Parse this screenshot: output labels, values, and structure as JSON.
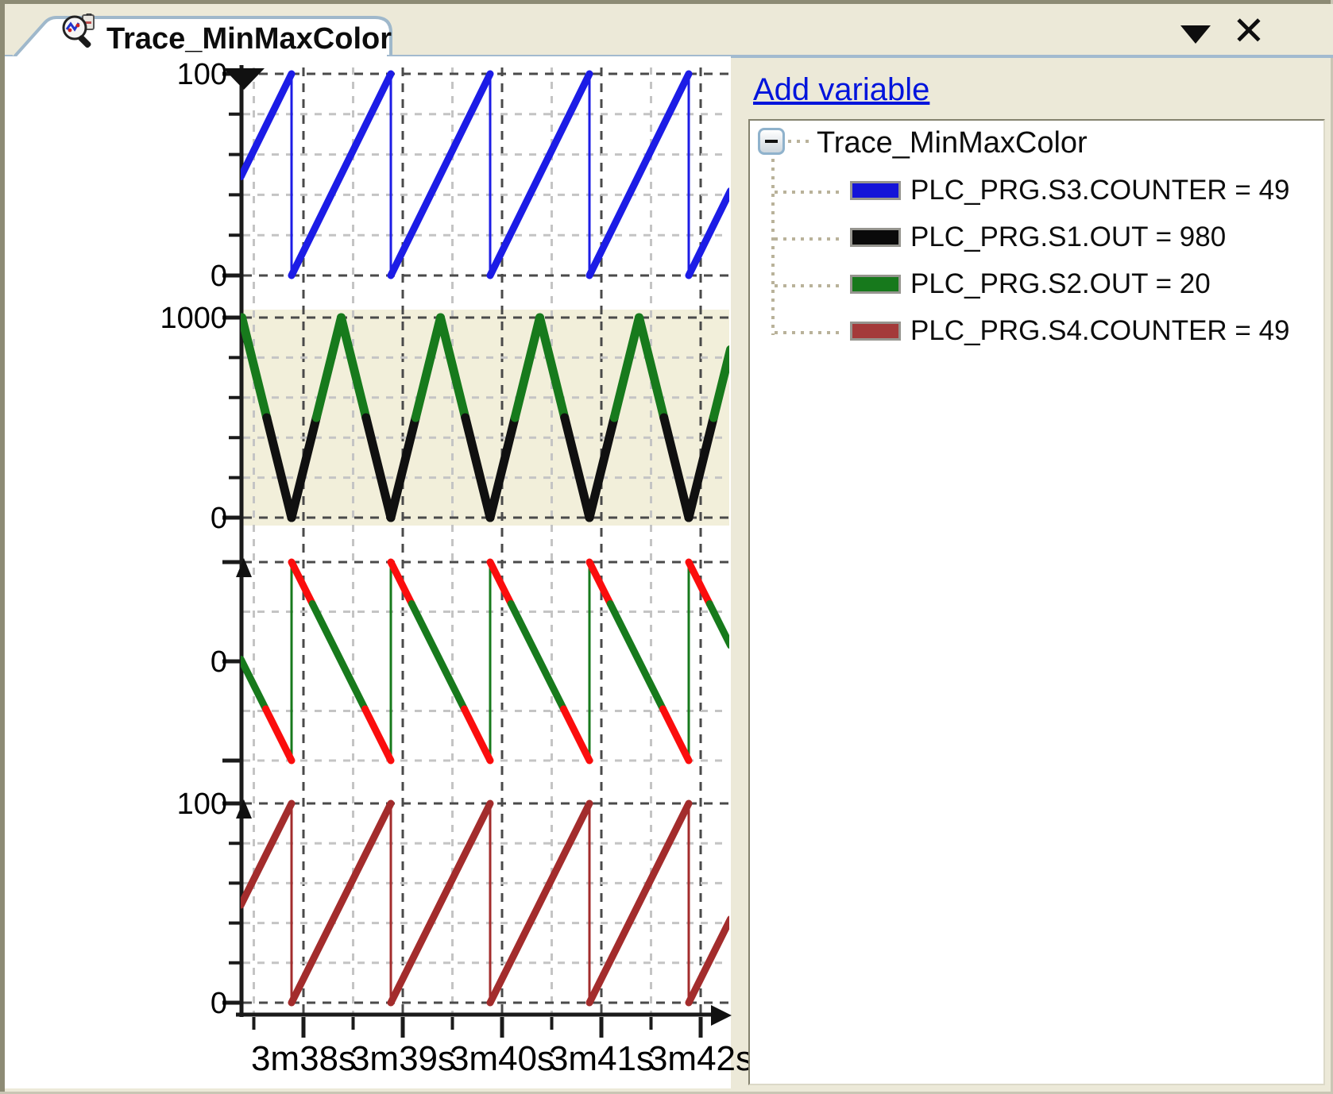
{
  "tab": {
    "title": "Trace_MinMaxColor",
    "collapse_icon": "caret-down",
    "close_icon": "close-x"
  },
  "right_panel": {
    "add_variable_label": "Add variable",
    "tree": {
      "root_label": "Trace_MinMaxColor",
      "items": [
        {
          "label": "PLC_PRG.S3.COUNTER = 49",
          "color": "#1414d8"
        },
        {
          "label": "PLC_PRG.S1.OUT = 980",
          "color": "#0a0a0a"
        },
        {
          "label": "PLC_PRG.S2.OUT = 20",
          "color": "#17791c"
        },
        {
          "label": "PLC_PRG.S4.COUNTER = 49",
          "color": "#a43a3a"
        }
      ]
    }
  },
  "chart_data": {
    "type": "line",
    "title": "Trace_MinMaxColor",
    "x_axis": {
      "tick_labels": [
        "3m38s",
        "3m39s",
        "3m40s",
        "3m41s",
        "3m42s"
      ],
      "tick_seconds": [
        218,
        219,
        220,
        221,
        222
      ],
      "window_seconds": [
        217.37,
        222.3
      ],
      "minor_tick_interval_s": 0.5
    },
    "sawtooth_reset_phase_s": 0.88,
    "plots": [
      {
        "kind": "sawtooth_rising",
        "color": "#1c1ce6",
        "range": [
          0,
          100
        ],
        "minor_tick_step": 20,
        "period_s": 1,
        "labeled_ticks": [
          {
            "text": "100",
            "value": 100
          },
          {
            "text": "0",
            "value": 0
          }
        ]
      },
      {
        "kind": "triangle",
        "color_above_split": "#177a1c",
        "color_below_split": "#101010",
        "split_value": 500,
        "range": [
          0,
          1000
        ],
        "minor_tick_step": 200,
        "period_s": 1,
        "plot_background": "#f2efda",
        "labeled_ticks": [
          {
            "text": "1000",
            "value": 1000
          },
          {
            "text": "0",
            "value": 0
          }
        ]
      },
      {
        "kind": "sawtooth_falling",
        "color": "#177a1c",
        "out_of_range_color": "#fb0d0d",
        "red_above": 29,
        "red_below": -24,
        "range": [
          -50,
          50
        ],
        "period_s": 1,
        "labeled_ticks": [
          {
            "text": "0",
            "value": 0
          }
        ]
      },
      {
        "kind": "sawtooth_rising",
        "color": "#a32c2c",
        "range": [
          0,
          100
        ],
        "minor_tick_step": 20,
        "period_s": 1,
        "labeled_ticks": [
          {
            "text": "100",
            "value": 100
          },
          {
            "text": "0",
            "value": 0
          }
        ]
      }
    ]
  }
}
